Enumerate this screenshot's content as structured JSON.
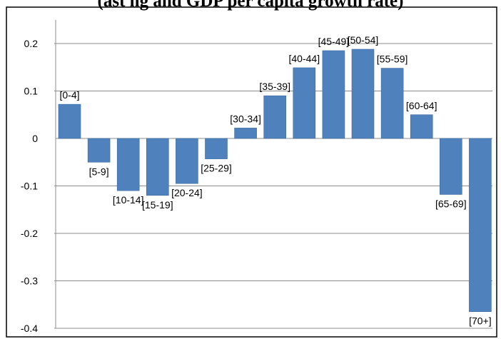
{
  "title": "(ast      ng   and GDP per capita growth rate)",
  "chart_data": {
    "type": "bar",
    "categories": [
      "[0-4]",
      "[5-9]",
      "[10-14]",
      "[15-19]",
      "[20-24]",
      "[25-29]",
      "[30-34]",
      "[35-39]",
      "[40-44]",
      "[45-49]",
      "[50-54]",
      "[55-59]",
      "[60-64]",
      "[65-69]",
      "[70+]"
    ],
    "values": [
      0.072,
      -0.05,
      -0.11,
      -0.12,
      -0.095,
      -0.043,
      0.022,
      0.09,
      0.149,
      0.185,
      0.188,
      0.148,
      0.05,
      -0.118,
      -0.365
    ],
    "ylim": [
      -0.4,
      0.25
    ],
    "yticks": [
      "-0.4",
      "-0.3",
      "-0.2",
      "-0.1",
      "0",
      "0.1",
      "0.2"
    ],
    "grid": true,
    "legend": "none",
    "bar_color": "#4f81bd"
  }
}
